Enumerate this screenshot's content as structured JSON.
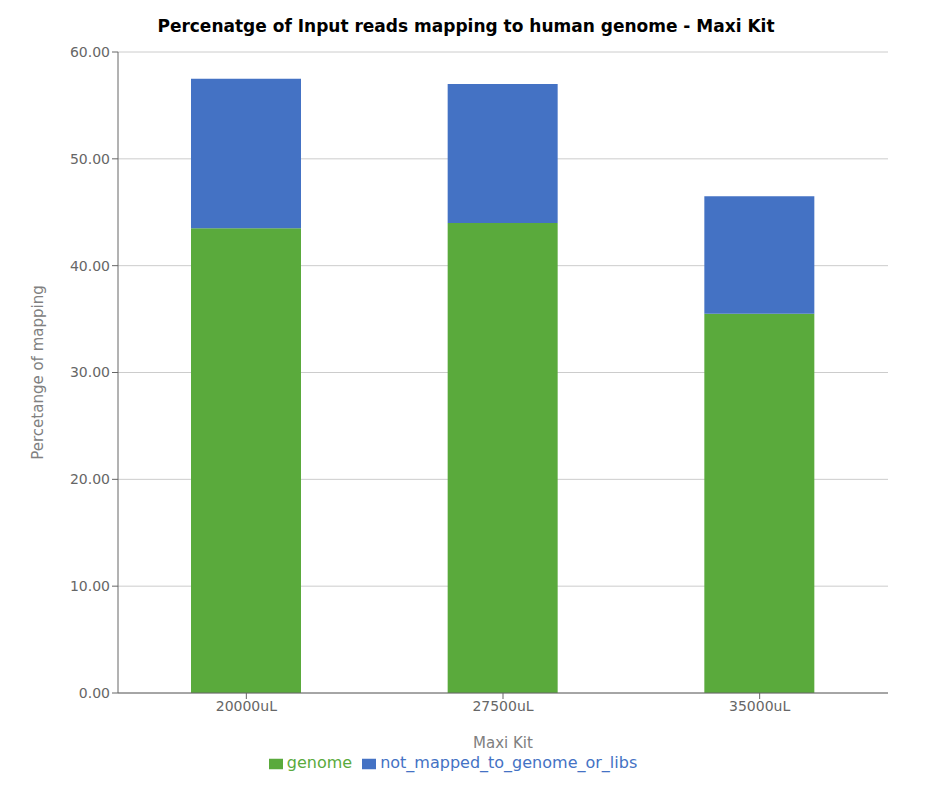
{
  "chart_data": {
    "type": "bar",
    "stacked": true,
    "title": "Percenatge of Input reads mapping to human genome - Maxi Kit",
    "xlabel": "Maxi Kit",
    "ylabel": "Percetange of mapping",
    "categories": [
      "20000uL",
      "27500uL",
      "35000uL"
    ],
    "series": [
      {
        "name": "genome",
        "color": "#5aaa3c",
        "values": [
          43.5,
          44.0,
          35.5
        ]
      },
      {
        "name": "not_mapped_to_genome_or_libs",
        "color": "#4472c4",
        "values": [
          14.0,
          13.0,
          11.0
        ]
      }
    ],
    "ylim": [
      0,
      60
    ],
    "yticks": [
      {
        "value": 0,
        "label": "0.00"
      },
      {
        "value": 10,
        "label": "10.00"
      },
      {
        "value": 20,
        "label": "20.00"
      },
      {
        "value": 30,
        "label": "30.00"
      },
      {
        "value": 40,
        "label": "40.00"
      },
      {
        "value": 50,
        "label": "50.00"
      },
      {
        "value": 60,
        "label": "60.00"
      }
    ],
    "grid": true,
    "legend": "bottom"
  }
}
